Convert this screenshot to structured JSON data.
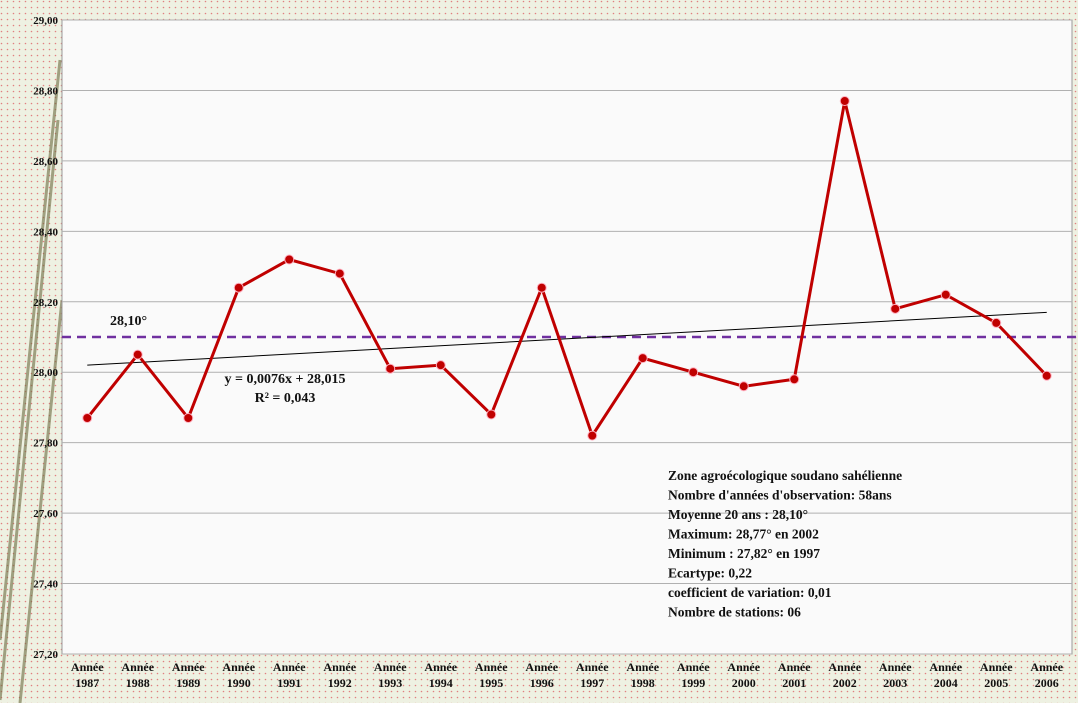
{
  "chart_data": {
    "type": "line",
    "categories": [
      "Année 1987",
      "Année 1988",
      "Année 1989",
      "Année 1990",
      "Année 1991",
      "Année 1992",
      "Année 1993",
      "Année 1994",
      "Année 1995",
      "Année 1996",
      "Année 1997",
      "Année 1998",
      "Année 1999",
      "Année 2000",
      "Année 2001",
      "Année 2002",
      "Année 2003",
      "Année 2004",
      "Année 2005",
      "Année 2006"
    ],
    "series": [
      {
        "color": "#c00000",
        "values": [
          27.87,
          28.05,
          27.87,
          28.24,
          28.32,
          28.28,
          28.01,
          28.02,
          27.88,
          28.24,
          27.82,
          28.04,
          28.0,
          27.96,
          27.98,
          28.77,
          28.18,
          28.22,
          28.14,
          27.99
        ]
      }
    ],
    "ylim": [
      27.2,
      29.0
    ],
    "yticks": [
      {
        "value": 27.2,
        "label": "27,20"
      },
      {
        "value": 27.4,
        "label": "27,40"
      },
      {
        "value": 27.6,
        "label": "27,60"
      },
      {
        "value": 27.8,
        "label": "27,80"
      },
      {
        "value": 28.0,
        "label": "28,00"
      },
      {
        "value": 28.2,
        "label": "28,20"
      },
      {
        "value": 28.4,
        "label": "28,40"
      },
      {
        "value": 28.6,
        "label": "28,60"
      },
      {
        "value": 28.8,
        "label": "28,80"
      },
      {
        "value": 29.0,
        "label": "29,00"
      }
    ],
    "grid": true,
    "mean_line": {
      "value": 28.1,
      "label": "28,10°",
      "color": "#7030a0"
    },
    "trendline": {
      "values": [
        28.02,
        28.17
      ],
      "color": "#000000"
    },
    "annotations": [
      "y = 0,0076x + 28,015",
      "R² = 0,043"
    ],
    "info_box": [
      "Zone agroécologique soudano sahélienne",
      "Nombre d'années d'observation:  58ans",
      "Moyenne 20 ans : 28,10°",
      "Maximum:  28,77° en 2002",
      "Minimum  : 27,82° en 1997",
      "Ecartype:  0,22",
      "coefficient de variation:    0,01",
      "Nombre de stations:  06"
    ]
  }
}
